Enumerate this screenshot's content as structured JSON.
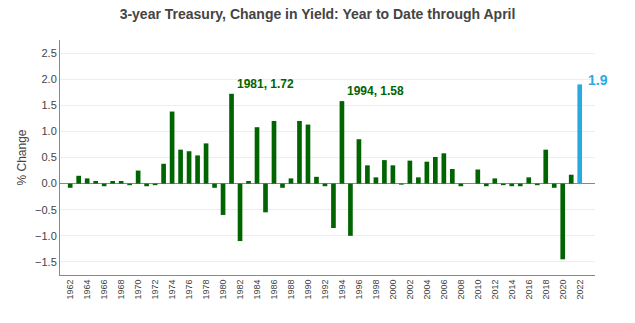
{
  "chart_data": {
    "type": "bar",
    "title": "3-year Treasury, Change in Yield: Year to Date through April",
    "ylabel": "% Change",
    "x": [
      1962,
      1963,
      1964,
      1965,
      1966,
      1967,
      1968,
      1969,
      1970,
      1971,
      1972,
      1973,
      1974,
      1975,
      1976,
      1977,
      1978,
      1979,
      1980,
      1981,
      1982,
      1983,
      1984,
      1985,
      1986,
      1987,
      1988,
      1989,
      1990,
      1991,
      1992,
      1993,
      1994,
      1995,
      1996,
      1997,
      1998,
      1999,
      2000,
      2001,
      2002,
      2003,
      2004,
      2005,
      2006,
      2007,
      2008,
      2009,
      2010,
      2011,
      2012,
      2013,
      2014,
      2015,
      2016,
      2017,
      2018,
      2019,
      2020,
      2021,
      2022
    ],
    "values": [
      -0.08,
      0.15,
      0.1,
      0.05,
      -0.05,
      0.05,
      0.05,
      -0.03,
      0.25,
      -0.05,
      -0.03,
      0.38,
      1.38,
      0.65,
      0.62,
      0.54,
      0.77,
      -0.08,
      -0.6,
      1.72,
      -1.1,
      0.05,
      1.08,
      -0.55,
      1.2,
      -0.08,
      0.1,
      1.2,
      1.13,
      0.13,
      -0.05,
      -0.85,
      1.58,
      -1.0,
      0.85,
      0.35,
      0.12,
      0.45,
      0.35,
      -0.02,
      0.44,
      0.12,
      0.42,
      0.51,
      0.58,
      0.28,
      -0.05,
      0.0,
      0.27,
      -0.05,
      0.1,
      -0.03,
      -0.05,
      -0.05,
      0.12,
      -0.03,
      0.65,
      -0.08,
      -1.45,
      0.17,
      1.9
    ],
    "colors": [
      "#006400",
      "#006400",
      "#006400",
      "#006400",
      "#006400",
      "#006400",
      "#006400",
      "#006400",
      "#006400",
      "#006400",
      "#006400",
      "#006400",
      "#006400",
      "#006400",
      "#006400",
      "#006400",
      "#006400",
      "#006400",
      "#006400",
      "#006400",
      "#006400",
      "#006400",
      "#006400",
      "#006400",
      "#006400",
      "#006400",
      "#006400",
      "#006400",
      "#006400",
      "#006400",
      "#006400",
      "#006400",
      "#006400",
      "#006400",
      "#006400",
      "#006400",
      "#006400",
      "#006400",
      "#006400",
      "#006400",
      "#006400",
      "#006400",
      "#006400",
      "#006400",
      "#006400",
      "#006400",
      "#006400",
      "#006400",
      "#006400",
      "#006400",
      "#006400",
      "#006400",
      "#006400",
      "#006400",
      "#006400",
      "#006400",
      "#006400",
      "#006400",
      "#006400",
      "#006400",
      "#29ABE2"
    ],
    "xlim": [
      1960.8,
      2023.8
    ],
    "xticks": [
      1962,
      1964,
      1966,
      1968,
      1970,
      1972,
      1974,
      1976,
      1978,
      1980,
      1982,
      1984,
      1986,
      1988,
      1990,
      1992,
      1994,
      1996,
      1998,
      2000,
      2002,
      2004,
      2006,
      2008,
      2010,
      2012,
      2014,
      2016,
      2018,
      2020,
      2022
    ],
    "ylim": [
      -1.75,
      2.75
    ],
    "yticks": [
      {
        "value": -1.5,
        "label": "−1.5"
      },
      {
        "value": -1.0,
        "label": "−1.0"
      },
      {
        "value": -0.5,
        "label": "−0.5"
      },
      {
        "value": 0,
        "label": "0.0"
      },
      {
        "value": 0.5,
        "label": "0.5"
      },
      {
        "value": 1.0,
        "label": "1.0"
      },
      {
        "value": 1.5,
        "label": "1.5"
      },
      {
        "value": 2.0,
        "label": "2.0"
      },
      {
        "value": 2.5,
        "label": "2.5"
      }
    ],
    "grid": true,
    "annotations": [
      {
        "text": "1981, 1.72",
        "x": 1981,
        "y": 1.72,
        "color": "#006400"
      },
      {
        "text": "1994, 1.58",
        "x": 1994,
        "y": 1.58,
        "color": "#006400"
      },
      {
        "text": "1.9",
        "x": 2022,
        "y": 1.9,
        "color": "#29ABE2"
      }
    ]
  }
}
